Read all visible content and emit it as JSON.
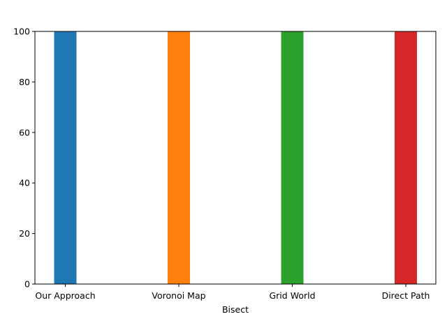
{
  "chart_data": {
    "type": "bar",
    "categories": [
      "Our Approach",
      "Voronoi Map",
      "Grid World",
      "Direct Path"
    ],
    "values": [
      100,
      100,
      100,
      100
    ],
    "colors": [
      "#1f77b4",
      "#ff7f0e",
      "#2ca02c",
      "#d62728"
    ],
    "title": "",
    "xlabel": "Bisect",
    "ylabel": "",
    "ylim": [
      0,
      100
    ],
    "yticks": [
      0,
      20,
      40,
      60,
      80,
      100
    ],
    "grid": false,
    "legend": "none"
  }
}
